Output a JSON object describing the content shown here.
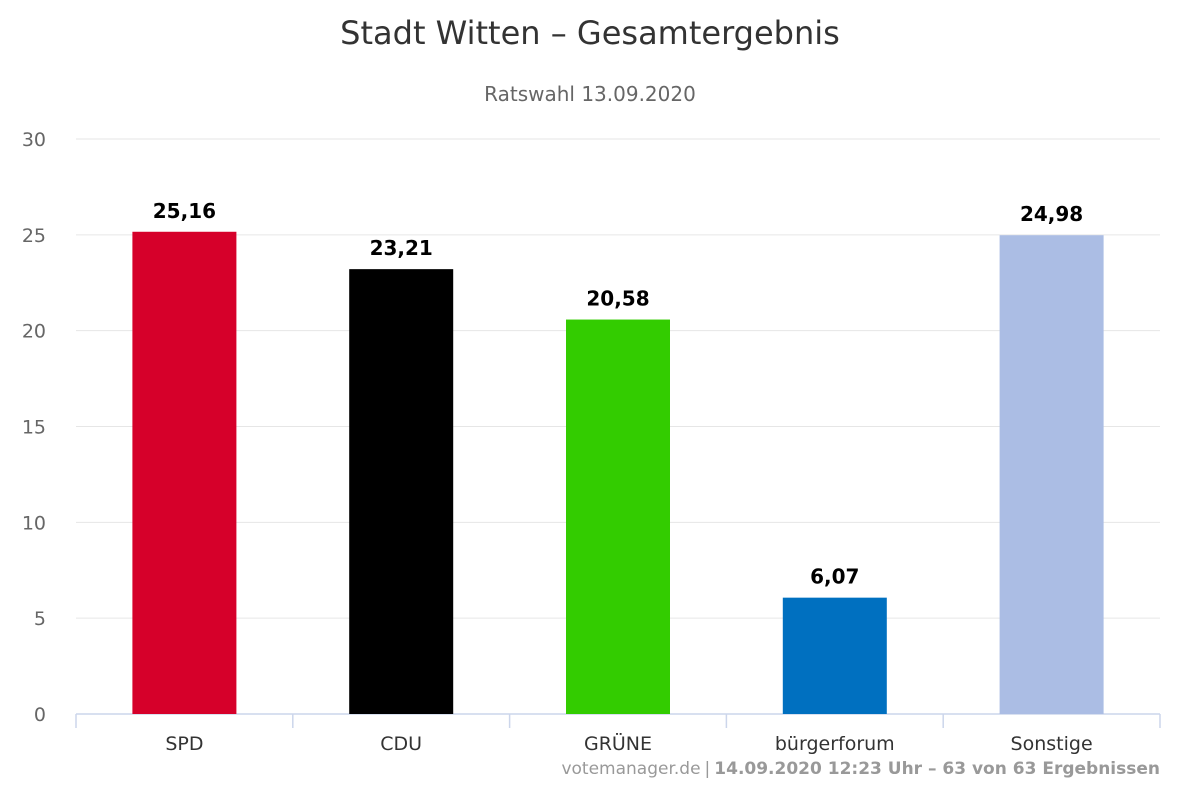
{
  "chart_data": {
    "type": "bar",
    "title": "Stadt Witten – Gesamtergebnis",
    "subtitle": "Ratswahl 13.09.2020",
    "categories": [
      "SPD",
      "CDU",
      "GRÜNE",
      "bürgerforum",
      "Sonstige"
    ],
    "values": [
      25.16,
      23.21,
      20.58,
      6.07,
      24.98
    ],
    "data_labels": [
      "25,16",
      "23,21",
      "20,58",
      "6,07",
      "24,98"
    ],
    "colors": [
      "#d6002a",
      "#000000",
      "#33cc00",
      "#0070c0",
      "#abbde4"
    ],
    "ylim": [
      0,
      30
    ],
    "yticks": [
      0,
      5,
      10,
      15,
      20,
      25,
      30
    ],
    "xlabel": "",
    "ylabel": "",
    "grid": true,
    "legend": "none"
  },
  "credits": {
    "source": "votemanager.de",
    "separator": "|",
    "info": "14.09.2020 12:23 Uhr – 63 von 63 Ergebnissen"
  }
}
